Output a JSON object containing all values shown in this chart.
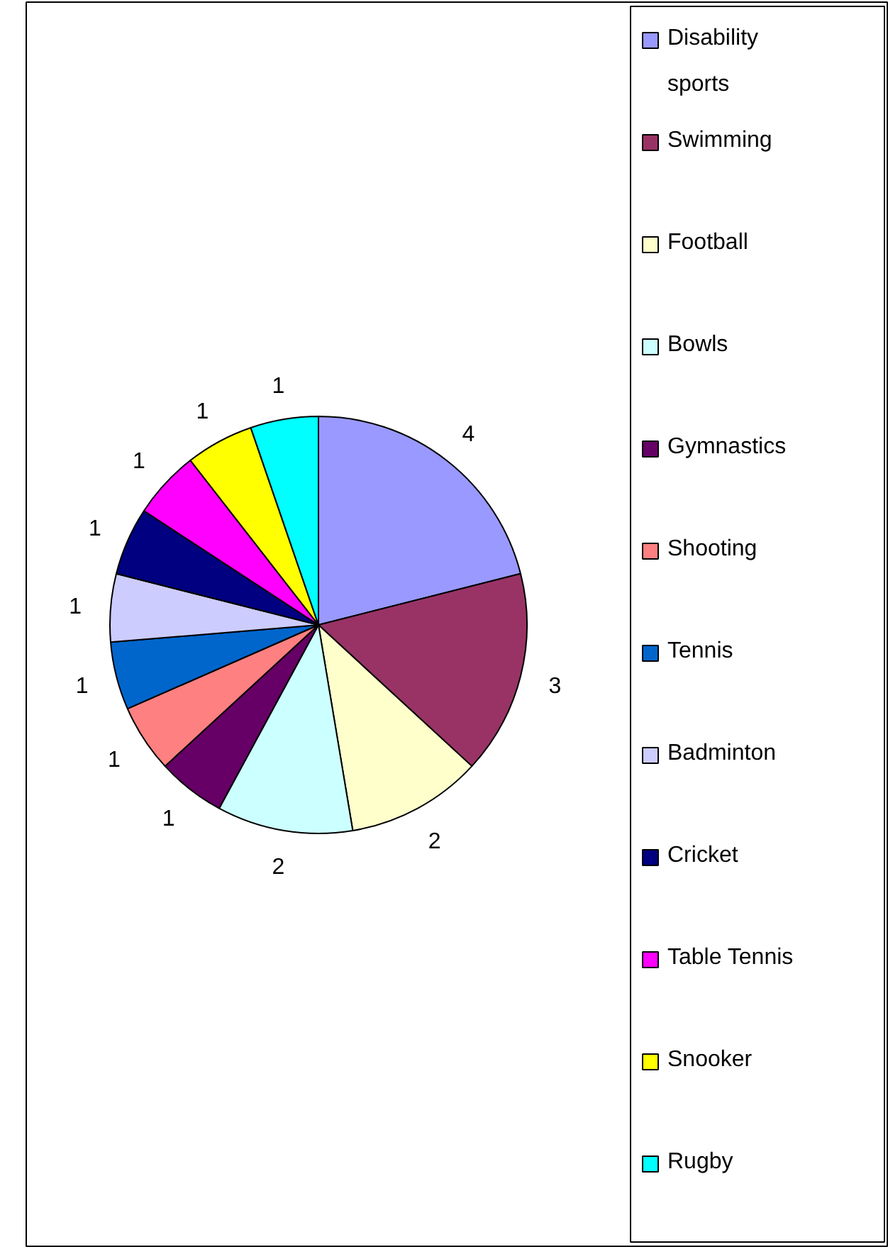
{
  "chart_data": {
    "type": "pie",
    "categories": [
      "Disability sports",
      "Swimming",
      "Football",
      "Bowls",
      "Gymnastics",
      "Shooting",
      "Tennis",
      "Badminton",
      "Cricket",
      "Table Tennis",
      "Snooker",
      "Rugby"
    ],
    "values": [
      4,
      3,
      2,
      2,
      1,
      1,
      1,
      1,
      1,
      1,
      1,
      1
    ],
    "colors": [
      "#9999ff",
      "#993366",
      "#ffffcc",
      "#ccffff",
      "#660066",
      "#ff8080",
      "#0066cc",
      "#ccccff",
      "#000080",
      "#ff00ff",
      "#ffff00",
      "#00ffff"
    ],
    "data_labels": true,
    "legend": "right"
  }
}
